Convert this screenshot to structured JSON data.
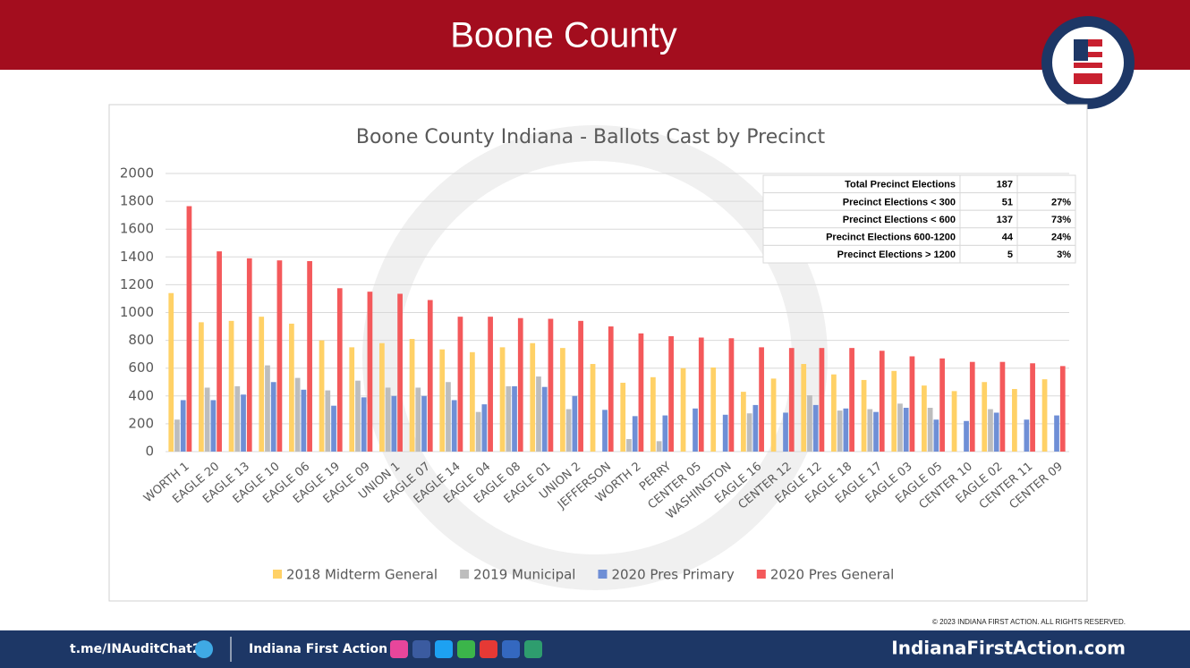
{
  "header": {
    "title": "Boone County"
  },
  "chart_data": {
    "type": "bar",
    "title": "Boone County Indiana - Ballots Cast by Precinct",
    "categories": [
      "WORTH 1",
      "EAGLE 20",
      "EAGLE 13",
      "EAGLE 10",
      "EAGLE 06",
      "EAGLE 19",
      "EAGLE 09",
      "UNION 1",
      "EAGLE 07",
      "EAGLE 14",
      "EAGLE 04",
      "EAGLE 08",
      "EAGLE 01",
      "UNION 2",
      "JEFFERSON",
      "WORTH 2",
      "PERRY",
      "CENTER 05",
      "WASHINGTON",
      "EAGLE 16",
      "CENTER 12",
      "EAGLE 12",
      "EAGLE 18",
      "EAGLE 17",
      "EAGLE 03",
      "EAGLE 05",
      "CENTER 10",
      "EAGLE 02",
      "CENTER 11",
      "CENTER 09"
    ],
    "series": [
      {
        "name": "2018 Midterm General",
        "color": "#ffd166",
        "values": [
          1140,
          930,
          940,
          970,
          920,
          800,
          750,
          780,
          810,
          735,
          715,
          750,
          780,
          745,
          630,
          495,
          535,
          600,
          605,
          430,
          525,
          630,
          555,
          515,
          580,
          475,
          435,
          500,
          450,
          520
        ]
      },
      {
        "name": "2019 Municipal",
        "color": "#bdbdbd",
        "values": [
          230,
          460,
          470,
          620,
          530,
          440,
          510,
          460,
          460,
          500,
          285,
          470,
          540,
          305,
          null,
          90,
          75,
          null,
          null,
          275,
          null,
          405,
          295,
          305,
          345,
          315,
          null,
          305,
          null,
          null
        ]
      },
      {
        "name": "2020 Pres Primary",
        "color": "#6f8fd6",
        "values": [
          370,
          370,
          410,
          500,
          445,
          330,
          390,
          400,
          400,
          370,
          340,
          470,
          465,
          400,
          300,
          255,
          260,
          310,
          265,
          335,
          280,
          335,
          310,
          285,
          315,
          230,
          220,
          280,
          230,
          260
        ]
      },
      {
        "name": "2020 Pres General",
        "color": "#f4595b",
        "values": [
          1765,
          1440,
          1390,
          1375,
          1370,
          1175,
          1150,
          1135,
          1090,
          970,
          970,
          960,
          955,
          940,
          900,
          850,
          830,
          820,
          815,
          750,
          745,
          745,
          745,
          725,
          685,
          670,
          645,
          645,
          635,
          615
        ]
      }
    ],
    "ylim": [
      0,
      2000
    ],
    "yticks": [
      0,
      200,
      400,
      600,
      800,
      1000,
      1200,
      1400,
      1600,
      1800,
      2000
    ],
    "grid": true,
    "legend": "bottom"
  },
  "table": {
    "rows": [
      [
        "Total Precinct Elections",
        "187"
      ],
      [
        "Precinct Elections < 300",
        "51",
        "27%"
      ],
      [
        "Precinct Elections < 600",
        "137",
        "73%"
      ],
      [
        "Precinct Elections 600-1200",
        "44",
        "24%"
      ],
      [
        "Precinct Elections > 1200",
        "5",
        "3%"
      ]
    ]
  },
  "footer": {
    "copyright": "© 2023 INDIANA FIRST ACTION. ALL RIGHTS RESERVED.",
    "chat": "t.me/INAuditChat2",
    "org": "Indiana First Action",
    "site": "IndianaFirstAction.com"
  }
}
